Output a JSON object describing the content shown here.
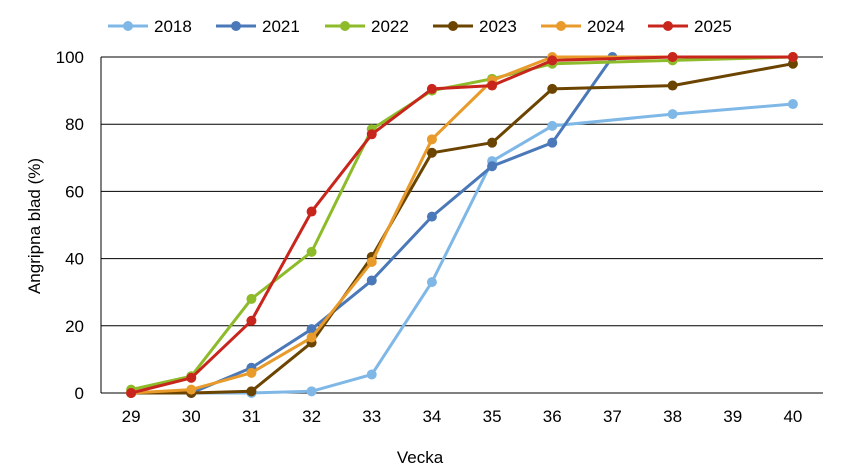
{
  "chart_data": {
    "type": "line",
    "x": [
      29,
      30,
      31,
      32,
      33,
      34,
      35,
      36,
      37,
      38,
      39,
      40
    ],
    "xlabel": "Vecka",
    "ylabel": "Angripna blad (%)",
    "ylim": [
      0,
      100
    ],
    "yticks": [
      0,
      20,
      40,
      60,
      80,
      100
    ],
    "grid": "horizontal",
    "legend_position": "top",
    "series": [
      {
        "name": "2018",
        "color": "#7fb8e6",
        "points": [
          [
            29,
            0
          ],
          [
            30,
            0
          ],
          [
            31,
            0
          ],
          [
            32,
            0.5
          ],
          [
            33,
            5.5
          ],
          [
            34,
            33
          ],
          [
            35,
            69
          ],
          [
            36,
            79.5
          ],
          [
            38,
            83
          ],
          [
            40,
            86
          ]
        ]
      },
      {
        "name": "2021",
        "color": "#4a78b8",
        "points": [
          [
            29,
            0
          ],
          [
            30,
            0
          ],
          [
            31,
            7.5
          ],
          [
            32,
            19
          ],
          [
            33,
            33.5
          ],
          [
            34,
            52.5
          ],
          [
            35,
            67.5
          ],
          [
            36,
            74.5
          ],
          [
            37,
            100
          ]
        ]
      },
      {
        "name": "2022",
        "color": "#8dbb2a",
        "points": [
          [
            29,
            1
          ],
          [
            30,
            5
          ],
          [
            31,
            28
          ],
          [
            32,
            42
          ],
          [
            33,
            78.5
          ],
          [
            34,
            90
          ],
          [
            35,
            93.5
          ],
          [
            36,
            98
          ],
          [
            38,
            99
          ],
          [
            40,
            100
          ]
        ]
      },
      {
        "name": "2023",
        "color": "#6b4400",
        "points": [
          [
            29,
            0
          ],
          [
            30,
            0
          ],
          [
            31,
            0.5
          ],
          [
            32,
            15
          ],
          [
            33,
            40.5
          ],
          [
            34,
            71.5
          ],
          [
            35,
            74.5
          ],
          [
            36,
            90.5
          ],
          [
            38,
            91.5
          ],
          [
            40,
            98
          ]
        ]
      },
      {
        "name": "2024",
        "color": "#e89a2a",
        "points": [
          [
            29,
            0
          ],
          [
            30,
            1
          ],
          [
            31,
            6
          ],
          [
            32,
            16.5
          ],
          [
            33,
            39
          ],
          [
            34,
            75.5
          ],
          [
            35,
            93
          ],
          [
            36,
            100
          ],
          [
            38,
            100
          ],
          [
            40,
            100
          ]
        ]
      },
      {
        "name": "2025",
        "color": "#c8261d",
        "points": [
          [
            29,
            0
          ],
          [
            30,
            4.5
          ],
          [
            31,
            21.5
          ],
          [
            32,
            54
          ],
          [
            33,
            77
          ],
          [
            34,
            90.5
          ],
          [
            35,
            91.5
          ],
          [
            36,
            99
          ],
          [
            38,
            100
          ],
          [
            40,
            100
          ]
        ]
      }
    ]
  }
}
